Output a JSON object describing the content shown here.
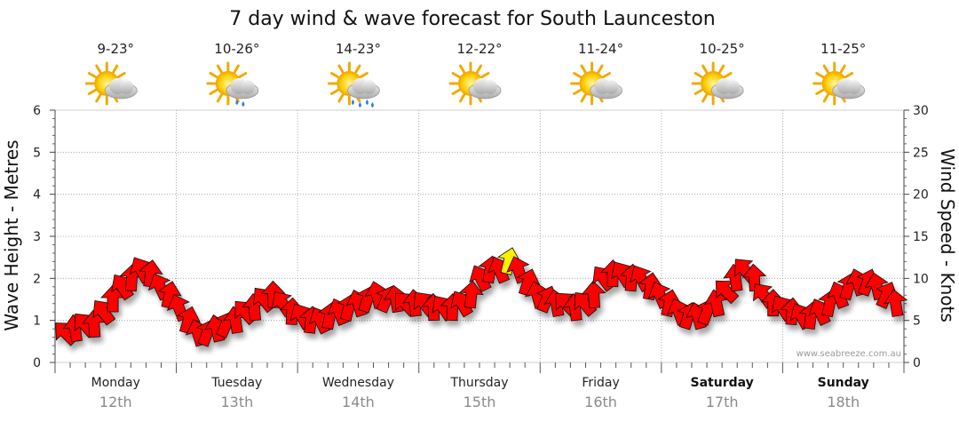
{
  "chart_data": {
    "type": "line",
    "title": "7 day wind & wave forecast for South Launceston",
    "ylabel_left": "Wave Height - Metres",
    "ylabel_right": "Wind Speed - Knots",
    "ylim_left": [
      0,
      6
    ],
    "ylim_right": [
      0,
      30
    ],
    "yticks_left": [
      "0",
      "1",
      "2",
      "3",
      "4",
      "5",
      "6"
    ],
    "yticks_right": [
      "0",
      "5",
      "10",
      "15",
      "20",
      "25",
      "30"
    ],
    "grid": true,
    "credit": "www.seabreeze.com.au",
    "days": [
      {
        "day": "Monday",
        "date": "12th",
        "temp": "9-23°",
        "weather": "partly-cloudy",
        "bold": false
      },
      {
        "day": "Tuesday",
        "date": "13th",
        "temp": "10-26°",
        "weather": "showers",
        "bold": false
      },
      {
        "day": "Wednesday",
        "date": "14th",
        "temp": "14-23°",
        "weather": "showers",
        "bold": false
      },
      {
        "day": "Thursday",
        "date": "15th",
        "temp": "12-22°",
        "weather": "partly-cloudy",
        "bold": false
      },
      {
        "day": "Friday",
        "date": "16th",
        "temp": "11-24°",
        "weather": "partly-cloudy",
        "bold": false
      },
      {
        "day": "Saturday",
        "date": "17th",
        "temp": "10-25°",
        "weather": "partly-cloudy",
        "bold": true
      },
      {
        "day": "Sunday",
        "date": "18th",
        "temp": "11-25°",
        "weather": "partly-cloudy",
        "bold": true
      }
    ],
    "series": [
      {
        "units": "knots",
        "interval_hours": 3,
        "values": [
          3.5,
          4,
          4.5,
          4.5,
          6,
          7.5,
          9,
          10,
          11,
          10.5,
          9,
          8,
          6.5,
          5,
          3.5,
          3.5,
          4,
          4.5,
          5,
          6,
          6.5,
          7.5,
          8,
          7,
          6,
          5.5,
          5,
          5,
          5.5,
          6,
          6.5,
          7,
          7.5,
          8,
          7.5,
          7.5,
          7,
          7,
          7,
          6.5,
          6.5,
          6.5,
          7,
          8,
          10,
          11,
          11,
          12,
          11,
          9.5,
          8,
          7.5,
          7,
          7,
          6.5,
          7,
          8,
          10,
          10.5,
          10.5,
          10,
          10,
          9,
          8,
          7,
          6,
          5.5,
          5.5,
          6,
          7,
          8.5,
          10,
          11,
          10,
          8,
          7,
          6.5,
          6,
          5.5,
          5.5,
          6,
          7,
          8,
          9,
          9.5,
          9.5,
          9,
          8,
          7
        ]
      }
    ],
    "arrow_color": "#ff0000",
    "highlight_color": "#ffee00",
    "highlight_threshold": 12
  }
}
